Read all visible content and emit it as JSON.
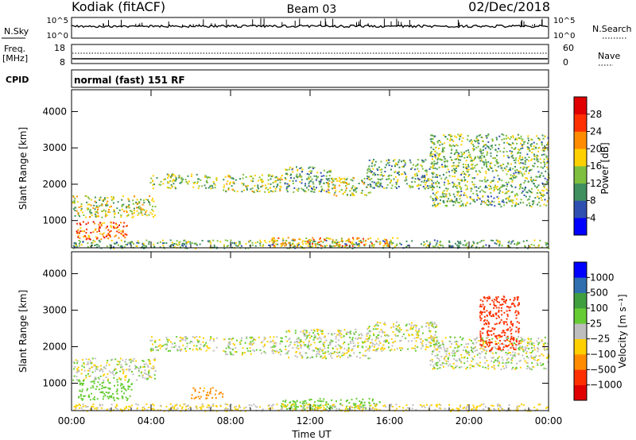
{
  "header": {
    "station": "Kodiak (fitACF)",
    "beam": "Beam 03",
    "date": "02/Dec/2018"
  },
  "status_panels": {
    "nsky": {
      "label": "N.Sky",
      "ticks": [
        "10^5",
        "10^0"
      ],
      "right_ticks": [
        "10^5",
        "10^0"
      ],
      "right_label": "N.Search"
    },
    "freq": {
      "label1": "Freq.",
      "label2": "[MHz]",
      "ticks": [
        "18",
        "8"
      ],
      "right_ticks": [
        "60",
        "0"
      ],
      "right_label": "Nave"
    },
    "cpid": {
      "label": "CPID",
      "text": "normal (fast) 151 RF"
    }
  },
  "chart_data": [
    {
      "type": "heatmap",
      "panel": "power",
      "ylabel": "Slant Range [km]",
      "colorbar_label": "Power [dB]",
      "colorbar_ticks": [
        4,
        8,
        12,
        16,
        20,
        24,
        28
      ],
      "colorbar_colors": [
        "#0000ff",
        "#2f4fb0",
        "#3f8f5f",
        "#7fbf3f",
        "#ffd000",
        "#ff8c00",
        "#ff3000",
        "#e00000"
      ],
      "ylim": [
        250,
        4600
      ],
      "yticks": [
        1000,
        2000,
        3000,
        4000
      ],
      "xlim": [
        0,
        24
      ],
      "xticks": [
        "00:00",
        "04:00",
        "08:00",
        "12:00",
        "16:00",
        "20:00",
        "00:00"
      ],
      "echo_regions": [
        {
          "t0": 0.0,
          "t1": 4.2,
          "r0": 1100,
          "r1": 1700,
          "level": 14
        },
        {
          "t0": 0.2,
          "t1": 2.8,
          "r0": 500,
          "r1": 1000,
          "level": 22
        },
        {
          "t0": 3.9,
          "t1": 7.3,
          "r0": 1900,
          "r1": 2300,
          "level": 12
        },
        {
          "t0": 7.6,
          "t1": 10.6,
          "r0": 1800,
          "r1": 2300,
          "level": 13
        },
        {
          "t0": 10.7,
          "t1": 13.0,
          "r0": 1800,
          "r1": 2500,
          "level": 10
        },
        {
          "t0": 12.8,
          "t1": 15.0,
          "r0": 1700,
          "r1": 2200,
          "level": 14
        },
        {
          "t0": 14.8,
          "t1": 18.4,
          "r0": 1900,
          "r1": 2700,
          "level": 10
        },
        {
          "t0": 18.0,
          "t1": 24.0,
          "r0": 1400,
          "r1": 3400,
          "level": 11
        },
        {
          "t0": 0.0,
          "t1": 24.0,
          "r0": 250,
          "r1": 480,
          "level": 10
        },
        {
          "t0": 10.0,
          "t1": 16.5,
          "r0": 300,
          "r1": 550,
          "level": 18
        }
      ]
    },
    {
      "type": "heatmap",
      "panel": "velocity",
      "ylabel": "Slant Range [km]",
      "colorbar_label": "Velocity [m s⁻¹]",
      "colorbar_ticks": [
        "1000",
        "500",
        "100",
        "25",
        "−25",
        "−100",
        "−500",
        "−1000"
      ],
      "colorbar_colors": [
        "#0000ff",
        "#2f6fb0",
        "#3f9f3f",
        "#66cc33",
        "#bebebe",
        "#ffd000",
        "#ff8c00",
        "#ff3000",
        "#e00000"
      ],
      "ylim": [
        250,
        4600
      ],
      "yticks": [
        1000,
        2000,
        3000,
        4000
      ],
      "xlim": [
        0,
        24
      ],
      "xticks": [
        "00:00",
        "04:00",
        "08:00",
        "12:00",
        "16:00",
        "20:00",
        "00:00"
      ],
      "xlabel": "Time UT",
      "echo_regions": [
        {
          "t0": 0.0,
          "t1": 4.2,
          "r0": 1100,
          "r1": 1700,
          "vel": 0
        },
        {
          "t0": 0.3,
          "t1": 3.0,
          "r0": 550,
          "r1": 1100,
          "vel": 120
        },
        {
          "t0": 3.9,
          "t1": 7.3,
          "r0": 1900,
          "r1": 2300,
          "vel": 0
        },
        {
          "t0": 7.6,
          "t1": 10.6,
          "r0": 1800,
          "r1": 2300,
          "vel": 0
        },
        {
          "t0": 10.7,
          "t1": 15.0,
          "r0": 1700,
          "r1": 2500,
          "vel": 0
        },
        {
          "t0": 14.8,
          "t1": 18.4,
          "r0": 1900,
          "r1": 2700,
          "vel": 0
        },
        {
          "t0": 18.0,
          "t1": 24.0,
          "r0": 1400,
          "r1": 2300,
          "vel": 0
        },
        {
          "t0": 20.5,
          "t1": 22.5,
          "r0": 1900,
          "r1": 3400,
          "vel": -400
        },
        {
          "t0": 6.0,
          "t1": 7.6,
          "r0": 600,
          "r1": 900,
          "vel": -150
        },
        {
          "t0": 10.5,
          "t1": 15.5,
          "r0": 300,
          "r1": 600,
          "vel": 150
        },
        {
          "t0": 0.0,
          "t1": 24.0,
          "r0": 250,
          "r1": 450,
          "vel": -40
        }
      ]
    }
  ]
}
